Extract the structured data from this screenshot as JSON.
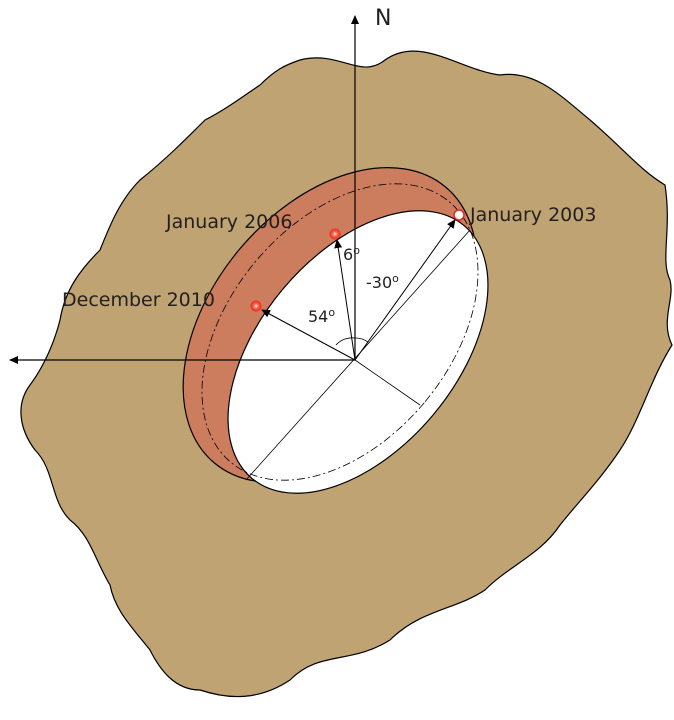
{
  "north": "N",
  "events": [
    {
      "label": "January 2003"
    },
    {
      "label": "January 2006"
    },
    {
      "label": "December 2010"
    }
  ],
  "angles": [
    {
      "value": "6",
      "unit": "o"
    },
    {
      "value": "-30",
      "unit": "o"
    },
    {
      "value": "54",
      "unit": "o"
    }
  ]
}
